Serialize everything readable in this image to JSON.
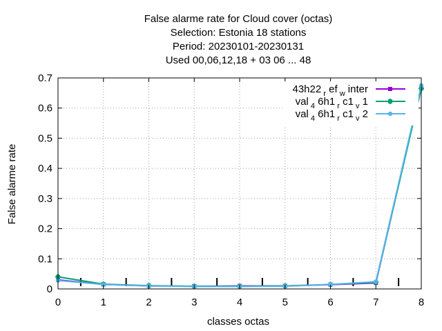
{
  "chart_data": {
    "type": "line",
    "title_lines": [
      "False alarme rate  for Cloud cover (octas)",
      "Selection: Estonia     18 stations",
      "Period: 20230101-20230131",
      "Used  00,06,12,18  + 03 06 ... 48"
    ],
    "xlabel": "classes octas",
    "ylabel": "False alarme rate",
    "xlim": [
      0,
      8
    ],
    "ylim": [
      0,
      0.7
    ],
    "x_ticks": [
      "0",
      "1",
      "2",
      "3",
      "4",
      "5",
      "6",
      "7",
      "8"
    ],
    "y_ticks": [
      "0",
      "0.1",
      "0.2",
      "0.3",
      "0.4",
      "0.5",
      "0.6",
      "0.7"
    ],
    "grid": true,
    "legend_position": "top-right",
    "x": [
      0,
      1,
      2,
      3,
      4,
      5,
      6,
      7,
      8
    ],
    "series": [
      {
        "name": "43h22_ref_winter",
        "legend": {
          "main": "43h22",
          "sub1": "r",
          "mid": "ef",
          "sub2": "w",
          "tail": "inter"
        },
        "color": "#9400d3",
        "marker": "square",
        "values": [
          0.03,
          0.015,
          0.01,
          0.009,
          0.01,
          0.01,
          0.014,
          0.02,
          0.67
        ]
      },
      {
        "name": "val_46h1_rc1_v1",
        "legend": {
          "main": "val",
          "sub1": "4",
          "mid": "6h1",
          "sub2": "r",
          "tail": "c1",
          "sub3": "v",
          "end": "1"
        },
        "color": "#009e73",
        "marker": "cross",
        "values": [
          0.04,
          0.016,
          0.011,
          0.009,
          0.009,
          0.01,
          0.015,
          0.022,
          0.665
        ]
      },
      {
        "name": "val_46h1_rc1_v2",
        "legend": {
          "main": "val",
          "sub1": "4",
          "mid": "6h1",
          "sub2": "r",
          "tail": "c1",
          "sub3": "v",
          "end": "2"
        },
        "color": "#56b4e9",
        "marker": "circle",
        "values": [
          0.028,
          0.015,
          0.01,
          0.008,
          0.008,
          0.009,
          0.015,
          0.024,
          0.675
        ]
      }
    ],
    "class_tick_marks": [
      0.5,
      1.5,
      2.5,
      3.5,
      4.5,
      5.5,
      6.5,
      7.5
    ]
  }
}
